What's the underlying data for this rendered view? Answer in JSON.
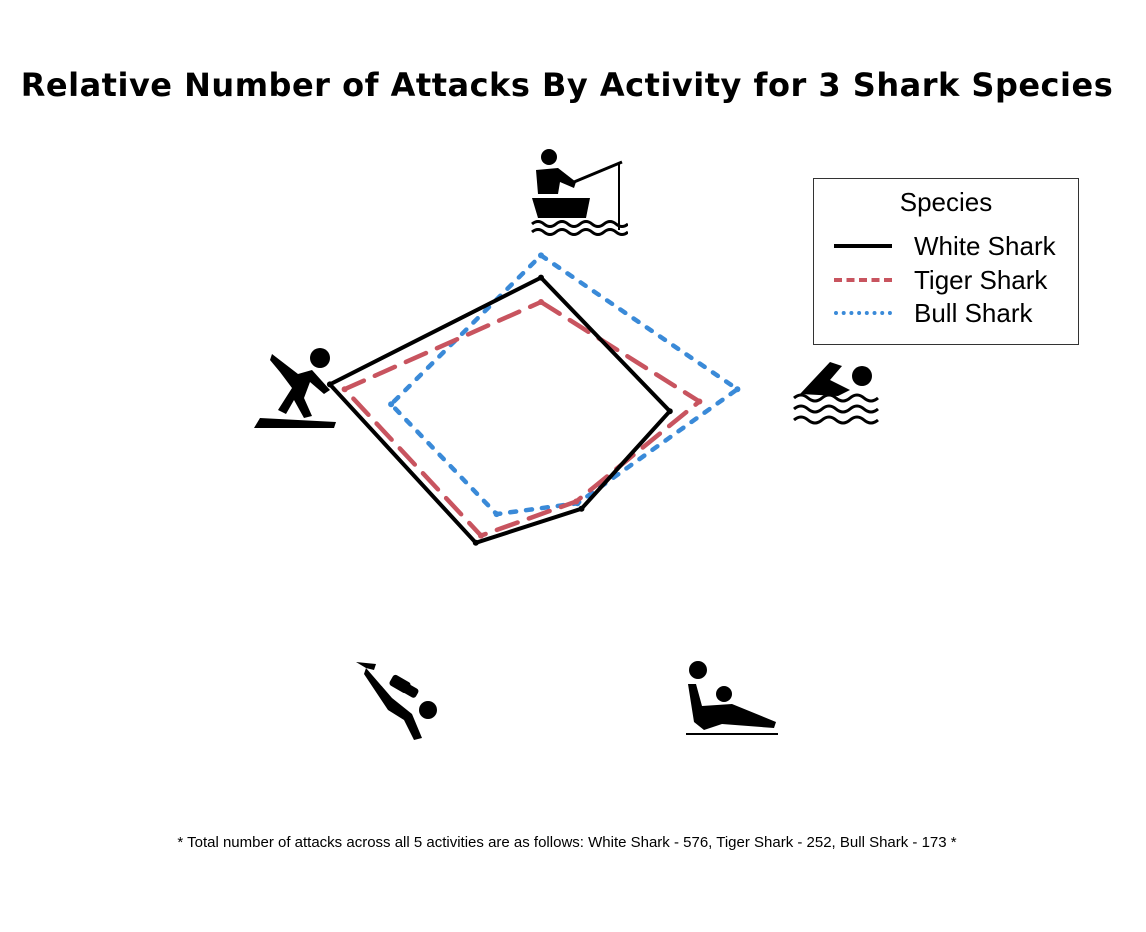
{
  "title": "Relative Number of Attacks By Activity for 3 Shark Species",
  "footnote": "* Total number of attacks across all 5 activities are as follows: White Shark - 576, Tiger Shark - 252, Bull Shark - 173 *",
  "legend": {
    "title": "Species"
  },
  "chart_data": {
    "type": "radar",
    "categories": [
      {
        "name": "fishing",
        "icon": "fishing-icon"
      },
      {
        "name": "swimming",
        "icon": "swimming-icon"
      },
      {
        "name": "wading",
        "icon": "wading-icon"
      },
      {
        "name": "scuba-diving",
        "icon": "scuba-diving-icon"
      },
      {
        "name": "surfing",
        "icon": "surfing-icon"
      }
    ],
    "series": [
      {
        "name": "White Shark",
        "color": "#000000",
        "style": "solid",
        "values": [
          0.79,
          0.61,
          0.31,
          0.5,
          1.0
        ]
      },
      {
        "name": "Tiger Shark",
        "color": "#c8545f",
        "style": "dashed",
        "values": [
          0.68,
          0.75,
          0.27,
          0.46,
          0.93
        ]
      },
      {
        "name": "Bull Shark",
        "color": "#3a8ad8",
        "style": "dotted",
        "values": [
          0.89,
          0.93,
          0.28,
          0.34,
          0.71
        ]
      }
    ],
    "scale": "relative, normalized per activity",
    "legend_position": "top-right"
  }
}
